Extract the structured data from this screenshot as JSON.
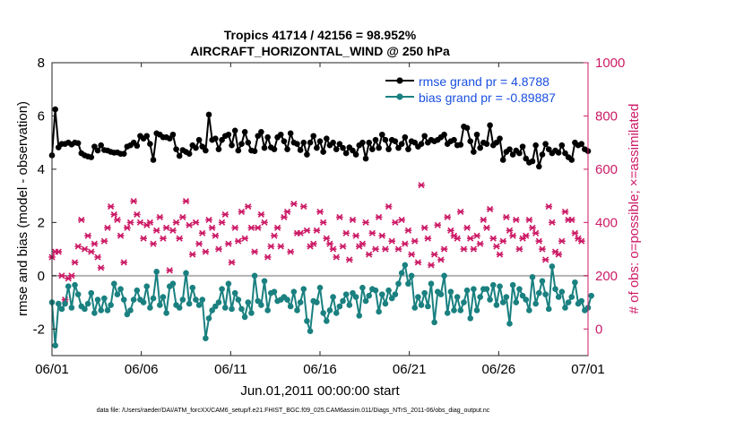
{
  "chart_data": {
    "type": "line",
    "title": "Tropics 41714 / 42156 = 98.952%",
    "subtitle": "AIRCRAFT_HORIZONTAL_WIND @ 250 hPa",
    "xlabel": "Jun.01,2011 00:00:00 start",
    "ylabel_left": "rmse and bias (model - observation)",
    "ylabel_right": "# of obs: o=possible; ×=assimilated",
    "footer": "data file: /Users/raeder/DAI/ATM_forcXX/CAM6_setup/f.e21.FHIST_BGC.f09_025.CAM6assim.011/Diags_NTrS_2011-06/obs_diag_output.nc",
    "x_ticks": [
      "06/01",
      "06/06",
      "06/11",
      "06/16",
      "06/21",
      "06/26",
      "07/01"
    ],
    "x_tick_days": [
      0,
      5,
      10,
      15,
      20,
      25,
      30
    ],
    "xlim": [
      0,
      30
    ],
    "ylim_left": [
      -3,
      8
    ],
    "yticks_left": [
      "-2",
      "0",
      "2",
      "4",
      "6",
      "8"
    ],
    "yticks_left_values": [
      -2,
      0,
      2,
      4,
      6,
      8
    ],
    "ylim_right": [
      -100,
      1000
    ],
    "yticks_right": [
      "0",
      "200",
      "400",
      "600",
      "800",
      "1000"
    ],
    "yticks_right_values": [
      0,
      200,
      400,
      600,
      800,
      1000
    ],
    "colors": {
      "rmse": "#000000",
      "bias": "#1a8080",
      "obs": "#cc1a66",
      "zero_line": "#b3b3b3",
      "legend_text": "#1a4fe0",
      "right_axis": "#cc1a66"
    },
    "legend": {
      "position": "top-right",
      "entries": [
        "rmse grand pr = 4.8788",
        "bias grand pr = -0.89887"
      ]
    },
    "series": [
      {
        "name": "rmse",
        "values": [
          4.52,
          6.25,
          4.82,
          4.95,
          4.95,
          5.0,
          4.93,
          5.0,
          4.98,
          4.6,
          4.52,
          4.48,
          4.45,
          4.85,
          4.7,
          4.9,
          4.72,
          4.7,
          4.65,
          4.62,
          4.63,
          4.58,
          4.58,
          4.85,
          4.9,
          5.0,
          4.88,
          5.25,
          5.15,
          5.25,
          4.95,
          4.35,
          5.35,
          5.3,
          5.2,
          5.2,
          5.15,
          5.3,
          4.75,
          4.5,
          4.72,
          4.65,
          4.58,
          4.9,
          4.8,
          5.1,
          4.85,
          4.7,
          6.05,
          5.1,
          5.15,
          4.75,
          5.1,
          5.25,
          5.3,
          4.9,
          5.45,
          4.7,
          4.95,
          5.4,
          5.0,
          4.7,
          4.68,
          5.25,
          5.4,
          4.8,
          5.2,
          4.82,
          4.75,
          5.2,
          5.3,
          5.05,
          4.75,
          5.35,
          5.0,
          4.95,
          4.72,
          5.0,
          4.55,
          5.0,
          5.25,
          4.8,
          5.05,
          4.65,
          5.15,
          4.9,
          5.0,
          4.75,
          4.95,
          4.8,
          4.6,
          4.82,
          4.7,
          4.55,
          4.9,
          5.0,
          4.4,
          5.0,
          4.75,
          5.1,
          4.8,
          5.3,
          5.1,
          4.75,
          5.1,
          5.05,
          4.8,
          4.95,
          5.2,
          4.75,
          5.05,
          5.0,
          4.85,
          4.95,
          5.25,
          5.0,
          5.1,
          5.05,
          5.1,
          5.2,
          5.3,
          4.95,
          5.05,
          5.1,
          4.9,
          4.92,
          5.6,
          5.55,
          5.05,
          4.65,
          5.3,
          4.8,
          5.0,
          4.95,
          5.65,
          4.9,
          5.0,
          5.15,
          4.35,
          4.65,
          4.75,
          4.55,
          4.7,
          4.6,
          4.85,
          4.4,
          4.25,
          4.3,
          4.9,
          4.1,
          4.55,
          4.95,
          4.75,
          4.6,
          4.7,
          4.62,
          4.9,
          4.6,
          4.45,
          4.35,
          5.0,
          4.9,
          4.95,
          4.75,
          4.68
        ],
        "marker": "*"
      },
      {
        "name": "bias",
        "values": [
          -1.0,
          -2.62,
          -1.05,
          -1.25,
          -1.05,
          -0.4,
          -1.2,
          -0.35,
          -0.7,
          -1.15,
          -1.25,
          -1.05,
          -0.65,
          -1.4,
          -0.9,
          -1.3,
          -0.85,
          -1.3,
          -1.1,
          -0.3,
          -0.7,
          -0.5,
          -0.9,
          -1.45,
          -1.3,
          -0.9,
          -0.55,
          -0.9,
          -1.0,
          -0.4,
          -1.2,
          -0.85,
          0.15,
          -1.1,
          -0.8,
          -1.4,
          -0.4,
          -0.3,
          -1.1,
          -1.2,
          -0.9,
          0.1,
          -1.05,
          -0.45,
          -0.9,
          -1.1,
          -0.9,
          -2.35,
          -1.6,
          -1.3,
          -1.15,
          -1.0,
          -0.5,
          -1.2,
          -0.3,
          -1.25,
          -0.65,
          -0.9,
          -1.25,
          -1.55,
          -1.0,
          -1.4,
          0.0,
          -0.95,
          -1.1,
          -0.2,
          -1.3,
          -0.65,
          -0.6,
          -0.95,
          -0.9,
          -0.8,
          -0.9,
          -1.15,
          -0.6,
          -1.3,
          -1.0,
          -0.5,
          -1.7,
          -2.08,
          -0.95,
          -1.0,
          -0.45,
          -1.4,
          -1.7,
          -1.3,
          -0.8,
          -1.4,
          -1.15,
          -0.95,
          -0.7,
          -1.1,
          -0.65,
          -0.8,
          -1.5,
          -0.45,
          -0.95,
          -0.75,
          -0.5,
          -0.55,
          -1.35,
          -0.7,
          -1.05,
          -0.55,
          -0.85,
          -0.7,
          -0.3,
          0.1,
          0.4,
          -0.3,
          0.0,
          -1.2,
          -0.8,
          -1.1,
          -0.65,
          -1.15,
          -0.3,
          -1.75,
          -0.6,
          -0.7,
          0.0,
          -1.4,
          -0.6,
          -1.3,
          -0.8,
          -1.3,
          -1.0,
          -0.55,
          -1.6,
          -0.5,
          -1.3,
          -0.8,
          -0.5,
          -0.5,
          -0.9,
          -0.35,
          -1.1,
          -0.4,
          -1.0,
          -0.8,
          -1.8,
          -0.35,
          -1.0,
          -0.5,
          -0.75,
          -0.9,
          -1.3,
          -0.05,
          -1.05,
          -0.65,
          -0.2,
          -0.7,
          -1.25,
          0.35,
          -0.5,
          -0.8,
          -0.6,
          -1.2,
          -1.0,
          -0.8,
          -0.25,
          -1.05,
          -0.95,
          -1.3,
          -1.2,
          -0.75
        ],
        "marker": "o"
      },
      {
        "name": "obs_assimilated",
        "values": [
          270,
          290,
          290,
          200,
          110,
          190,
          200,
          250,
          310,
          410,
          300,
          350,
          290,
          320,
          270,
          230,
          330,
          380,
          460,
          430,
          410,
          350,
          250,
          380,
          400,
          480,
          430,
          400,
          340,
          390,
          400,
          320,
          370,
          420,
          340,
          380,
          220,
          370,
          400,
          340,
          420,
          480,
          390,
          280,
          400,
          320,
          360,
          290,
          410,
          380,
          350,
          300,
          400,
          430,
          320,
          250,
          380,
          330,
          440,
          340,
          460,
          380,
          290,
          380,
          430,
          400,
          270,
          310,
          350,
          380,
          310,
          420,
          440,
          290,
          470,
          360,
          360,
          460,
          370,
          310,
          320,
          370,
          440,
          400,
          340,
          320,
          300,
          270,
          420,
          310,
          360,
          260,
          410,
          350,
          310,
          320,
          400,
          280,
          360,
          300,
          420,
          350,
          300,
          460,
          330,
          400,
          300,
          410,
          320,
          370,
          280,
          330,
          250,
          540,
          380,
          340,
          240,
          280,
          390,
          260,
          300,
          420,
          370,
          350,
          340,
          440,
          300,
          380,
          340,
          300,
          350,
          320,
          410,
          380,
          450,
          340,
          310,
          280,
          330,
          420,
          370,
          350,
          410,
          300,
          340,
          350,
          410,
          380,
          360,
          330,
          300,
          260,
          460,
          400,
          290,
          280,
          330,
          440,
          410,
          410,
          360,
          340,
          330
        ],
        "marker": "x"
      }
    ]
  }
}
